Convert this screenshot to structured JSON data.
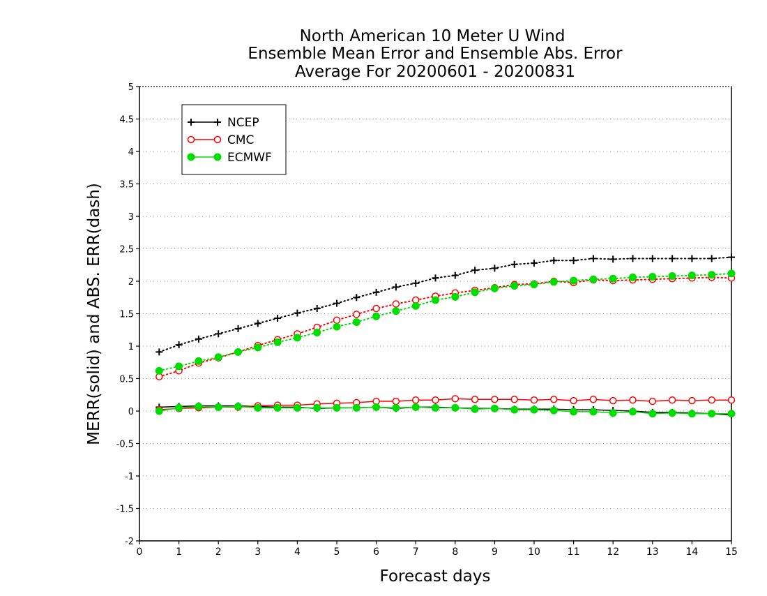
{
  "chart_data": {
    "type": "line",
    "title": [
      "North American 10 Meter U Wind",
      "Ensemble Mean Error and Ensemble Abs. Error",
      "Average For 20200601 - 20200831"
    ],
    "xlabel": "Forecast days",
    "ylabel": "MERR(solid) and ABS. ERR(dash)",
    "xlim": [
      0,
      15
    ],
    "ylim": [
      -2,
      5
    ],
    "xticks": [
      0,
      1,
      2,
      3,
      4,
      5,
      6,
      7,
      8,
      9,
      10,
      11,
      12,
      13,
      14,
      15
    ],
    "yticks": [
      -2,
      -1.5,
      -1,
      -0.5,
      0,
      0.5,
      1,
      1.5,
      2,
      2.5,
      3,
      3.5,
      4,
      4.5,
      5
    ],
    "ytick_labels": [
      "-2",
      "-1.5",
      "-1",
      "-0.5",
      "0",
      "0.5",
      "1",
      "1.5",
      "2",
      "2.5",
      "3",
      "3.5",
      "4",
      "4.5",
      "5"
    ],
    "grid": "horizontal dotted",
    "legend_position": "top-left",
    "x": [
      0.5,
      1,
      1.5,
      2,
      2.5,
      3,
      3.5,
      4,
      4.5,
      5,
      5.5,
      6,
      6.5,
      7,
      7.5,
      8,
      8.5,
      9,
      9.5,
      10,
      10.5,
      11,
      11.5,
      12,
      12.5,
      13,
      13.5,
      14,
      14.5,
      15
    ],
    "series": [
      {
        "name": "NCEP",
        "color": "#000000",
        "marker": "plus",
        "abs_err": [
          0.91,
          1.02,
          1.11,
          1.19,
          1.27,
          1.35,
          1.43,
          1.51,
          1.58,
          1.66,
          1.75,
          1.83,
          1.91,
          1.97,
          2.05,
          2.09,
          2.17,
          2.2,
          2.26,
          2.28,
          2.32,
          2.32,
          2.35,
          2.34,
          2.35,
          2.35,
          2.35,
          2.35,
          2.35,
          2.37
        ],
        "mean_err": [
          0.06,
          0.07,
          0.08,
          0.08,
          0.08,
          0.07,
          0.06,
          0.06,
          0.04,
          0.05,
          0.05,
          0.06,
          0.04,
          0.06,
          0.06,
          0.05,
          0.04,
          0.04,
          0.03,
          0.03,
          0.03,
          0.02,
          0.02,
          0.01,
          0.0,
          -0.02,
          -0.02,
          -0.03,
          -0.04,
          -0.06
        ]
      },
      {
        "name": "CMC",
        "color": "#ff0000",
        "marker": "open-circle",
        "abs_err": [
          0.53,
          0.62,
          0.74,
          0.82,
          0.91,
          1.01,
          1.1,
          1.19,
          1.29,
          1.4,
          1.49,
          1.58,
          1.65,
          1.71,
          1.77,
          1.82,
          1.86,
          1.9,
          1.95,
          1.96,
          2.0,
          1.98,
          2.02,
          2.01,
          2.02,
          2.03,
          2.04,
          2.05,
          2.06,
          2.05
        ],
        "mean_err": [
          0.02,
          0.04,
          0.05,
          0.06,
          0.06,
          0.08,
          0.09,
          0.09,
          0.11,
          0.12,
          0.13,
          0.15,
          0.15,
          0.17,
          0.17,
          0.19,
          0.18,
          0.18,
          0.18,
          0.17,
          0.18,
          0.16,
          0.18,
          0.16,
          0.17,
          0.15,
          0.17,
          0.16,
          0.17,
          0.17
        ]
      },
      {
        "name": "ECMWF",
        "color": "#00dd00",
        "marker": "filled-circle",
        "abs_err": [
          0.62,
          0.69,
          0.77,
          0.83,
          0.91,
          0.98,
          1.06,
          1.13,
          1.21,
          1.3,
          1.37,
          1.46,
          1.54,
          1.62,
          1.71,
          1.76,
          1.83,
          1.89,
          1.93,
          1.95,
          1.99,
          2.01,
          2.03,
          2.04,
          2.06,
          2.07,
          2.08,
          2.09,
          2.1,
          2.12
        ],
        "mean_err": [
          0.0,
          0.05,
          0.07,
          0.06,
          0.07,
          0.05,
          0.05,
          0.05,
          0.05,
          0.05,
          0.05,
          0.06,
          0.05,
          0.06,
          0.05,
          0.05,
          0.03,
          0.04,
          0.02,
          0.02,
          0.01,
          -0.01,
          -0.01,
          -0.03,
          -0.01,
          -0.04,
          -0.03,
          -0.04,
          -0.04,
          -0.04
        ]
      }
    ]
  }
}
